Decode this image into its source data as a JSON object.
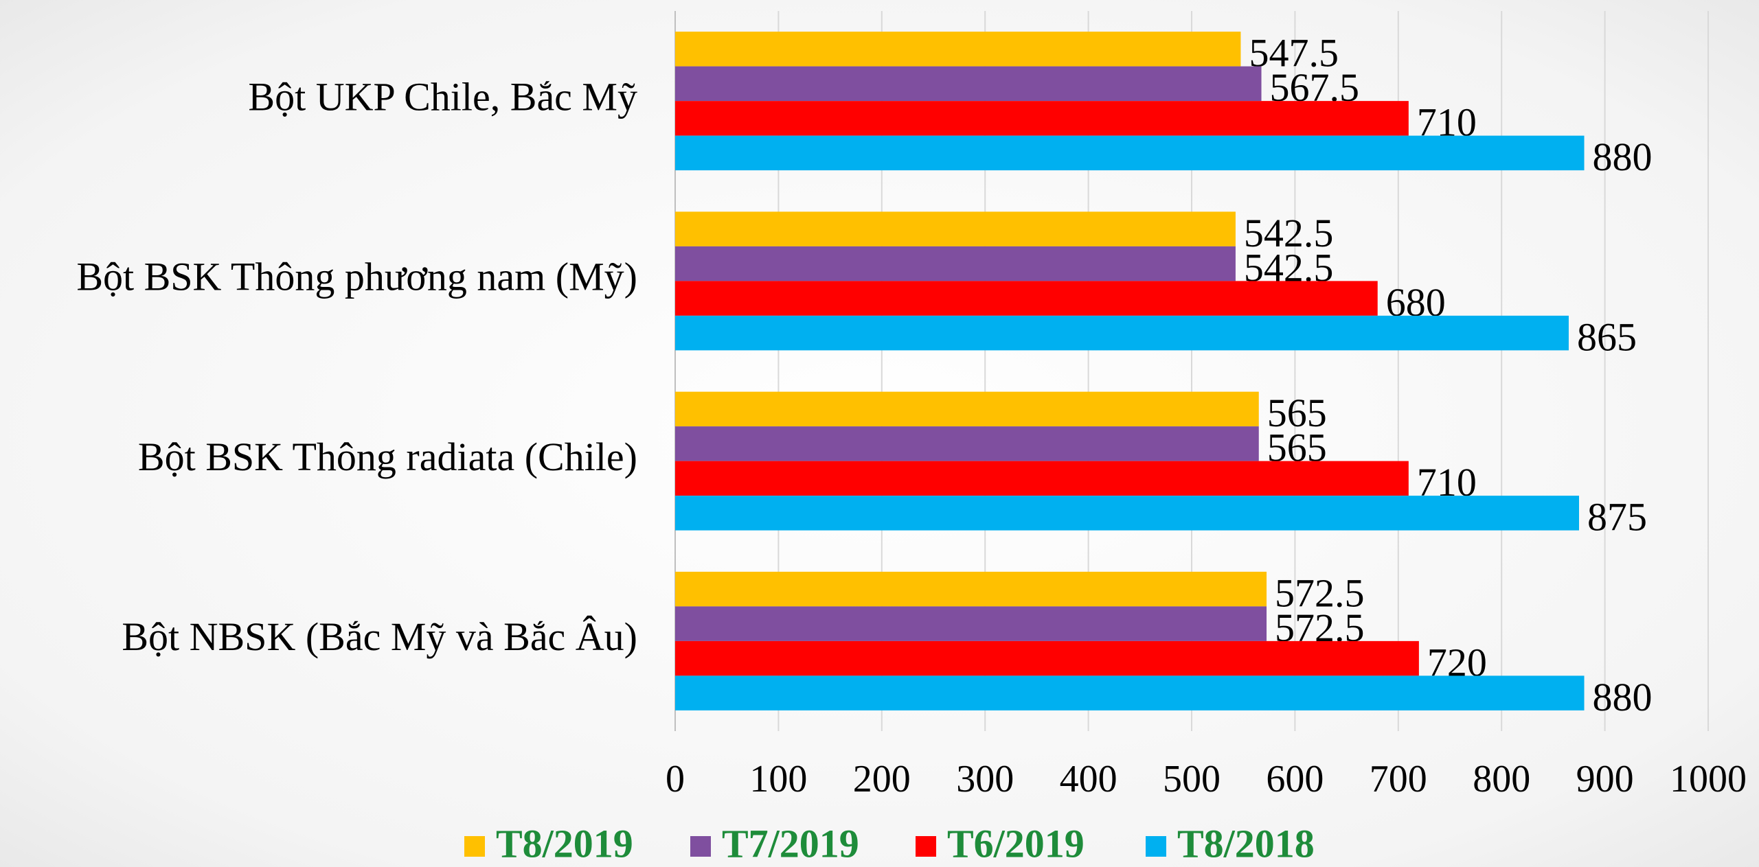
{
  "chart_data": {
    "type": "bar",
    "orientation": "horizontal",
    "categories": [
      "Bột UKP Chile, Bắc Mỹ",
      "Bột BSK Thông phương nam (Mỹ)",
      "Bột BSK Thông radiata (Chile)",
      "Bột NBSK (Bắc Mỹ và Bắc Âu)"
    ],
    "series": [
      {
        "name": "T8/2019",
        "color": "#ffc000",
        "values": [
          547.5,
          542.5,
          565,
          572.5
        ]
      },
      {
        "name": "T7/2019",
        "color": "#7f4f9f",
        "values": [
          567.5,
          542.5,
          565,
          572.5
        ]
      },
      {
        "name": "T6/2019",
        "color": "#ff0000",
        "values": [
          710,
          680,
          710,
          720
        ]
      },
      {
        "name": "T8/2018",
        "color": "#00b0f0",
        "values": [
          880,
          865,
          875,
          880
        ]
      }
    ],
    "xlim": [
      0,
      1000
    ],
    "xticks": [
      0,
      100,
      200,
      300,
      400,
      500,
      600,
      700,
      800,
      900,
      1000
    ],
    "grid": true,
    "legend": "bottom"
  }
}
